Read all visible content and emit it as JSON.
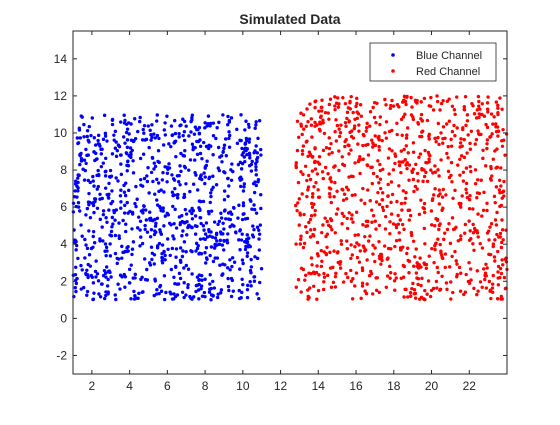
{
  "chart_data": {
    "type": "scatter",
    "title": "Simulated Data",
    "xlabel": "",
    "ylabel": "",
    "xlim": [
      1,
      24
    ],
    "ylim": [
      -3,
      15.5
    ],
    "xticks": [
      2,
      4,
      6,
      8,
      10,
      12,
      14,
      16,
      18,
      20,
      22
    ],
    "yticks": [
      -2,
      0,
      2,
      4,
      6,
      8,
      10,
      12,
      14
    ],
    "grid": false,
    "legend_position": "top-right",
    "series": [
      {
        "name": "Blue Channel",
        "color": "#0000ff",
        "count": 1000,
        "x_range": [
          1,
          11
        ],
        "y_range": [
          1,
          11
        ],
        "distribution": "uniform"
      },
      {
        "name": "Red Channel",
        "color": "#ff0000",
        "count": 1000,
        "x_range": [
          12.8,
          24
        ],
        "y_range": [
          1,
          12
        ],
        "distribution": "uniform"
      }
    ]
  }
}
